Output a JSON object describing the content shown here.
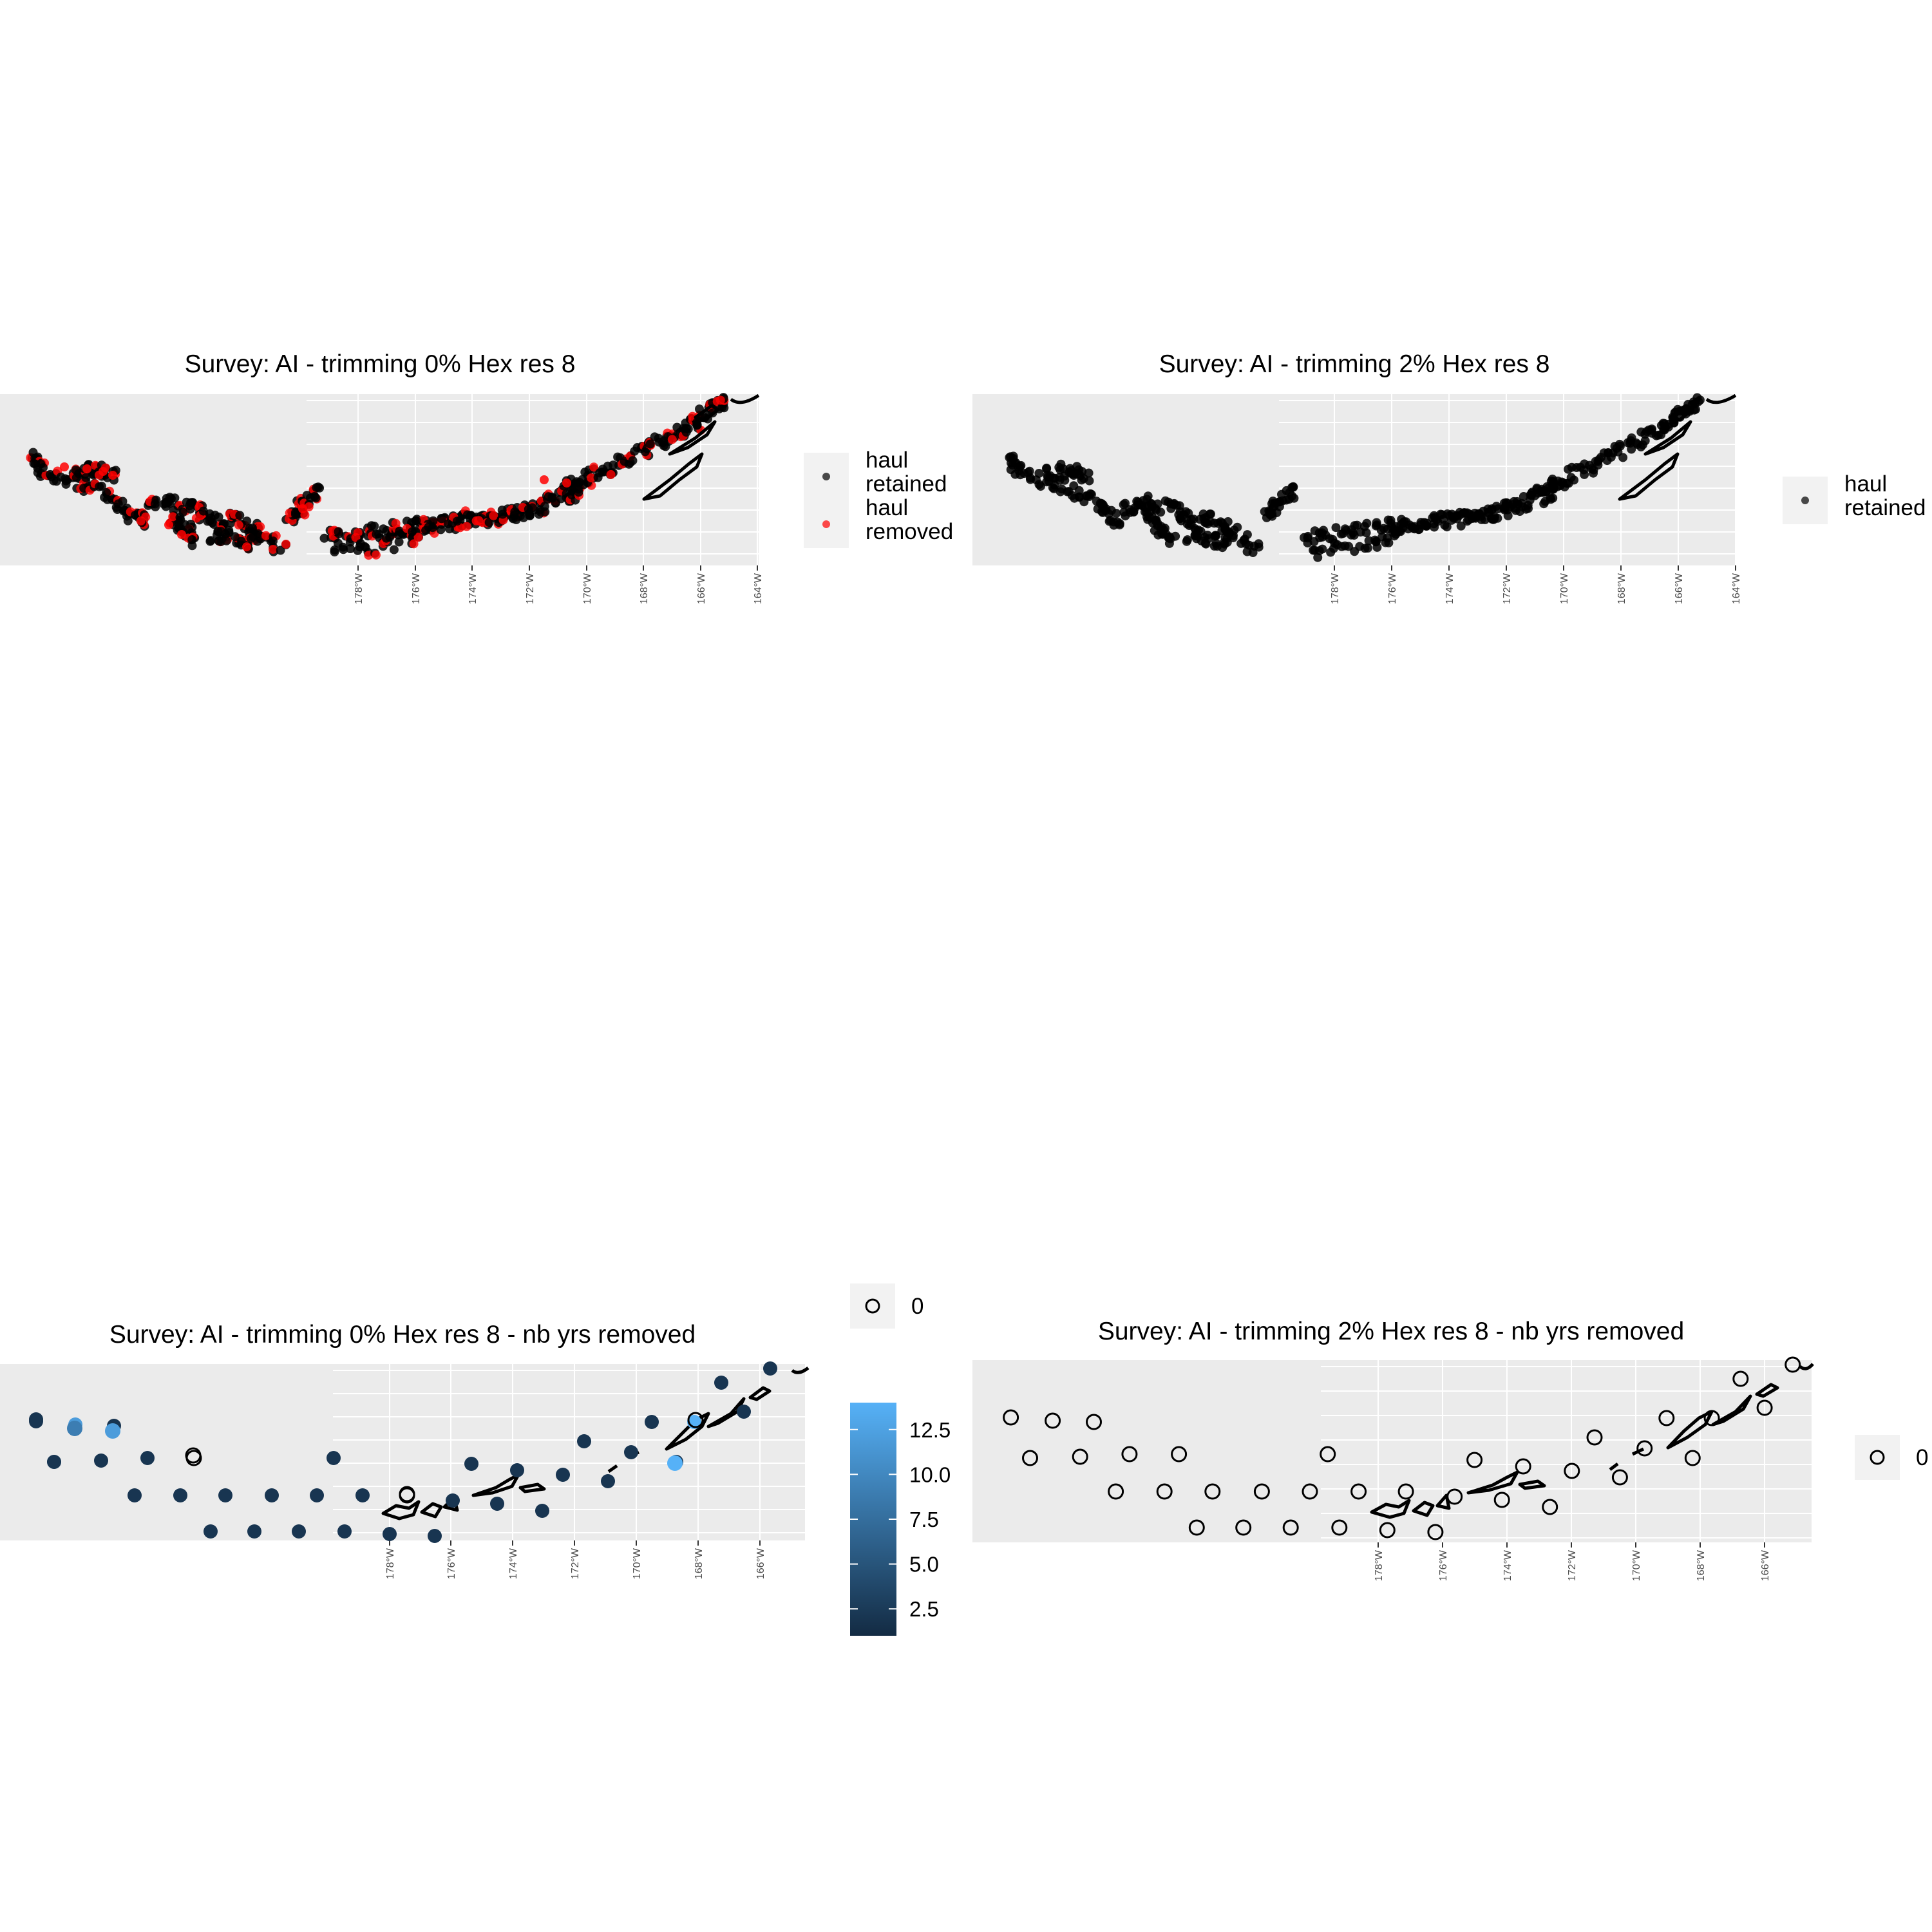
{
  "colors": {
    "panel_bg": "#ebebeb",
    "grid": "#ffffff",
    "retained": "#000000",
    "removed": "#ff0000",
    "outline": "#000000",
    "scale_low": "#132b43",
    "scale_high": "#56b1f7",
    "legend_key_bg": "#f2f2f2"
  },
  "panels": [
    {
      "id": "p1",
      "title": "Survey: AI - trimming 0% Hex res 8",
      "x_ticks": [
        "178°W",
        "176°W",
        "174°W",
        "172°W",
        "170°W",
        "168°W",
        "166°W",
        "164°W"
      ],
      "legend": [
        {
          "label_line1": "haul",
          "label_line2": "retained",
          "color": "#000000"
        },
        {
          "label_line1": "haul",
          "label_line2": "removed",
          "color": "#ff0000"
        }
      ]
    },
    {
      "id": "p2",
      "title": "Survey: AI - trimming 2% Hex res 8",
      "x_ticks": [
        "178°W",
        "176°W",
        "174°W",
        "172°W",
        "170°W",
        "168°W",
        "166°W",
        "164°W"
      ],
      "legend": [
        {
          "label_line1": "haul",
          "label_line2": "retained",
          "color": "#000000"
        }
      ]
    },
    {
      "id": "p3",
      "title": "Survey: AI - trimming 0% Hex res 8 - nb yrs removed",
      "x_ticks": [
        "178°W",
        "176°W",
        "174°W",
        "172°W",
        "170°W",
        "168°W",
        "166°W"
      ],
      "zero_legend_label": "0",
      "colorbar": {
        "ticks": [
          "12.5",
          "10.0",
          "7.5",
          "5.0",
          "2.5"
        ],
        "tick_values": [
          12.5,
          10,
          7.5,
          5,
          2.5
        ],
        "min": 1,
        "max": 14
      }
    },
    {
      "id": "p4",
      "title": "Survey: AI - trimming 2% Hex res 8 - nb yrs removed",
      "x_ticks": [
        "178°W",
        "176°W",
        "174°W",
        "172°W",
        "170°W",
        "168°W",
        "166°W"
      ],
      "zero_legend_label": "0"
    }
  ]
}
